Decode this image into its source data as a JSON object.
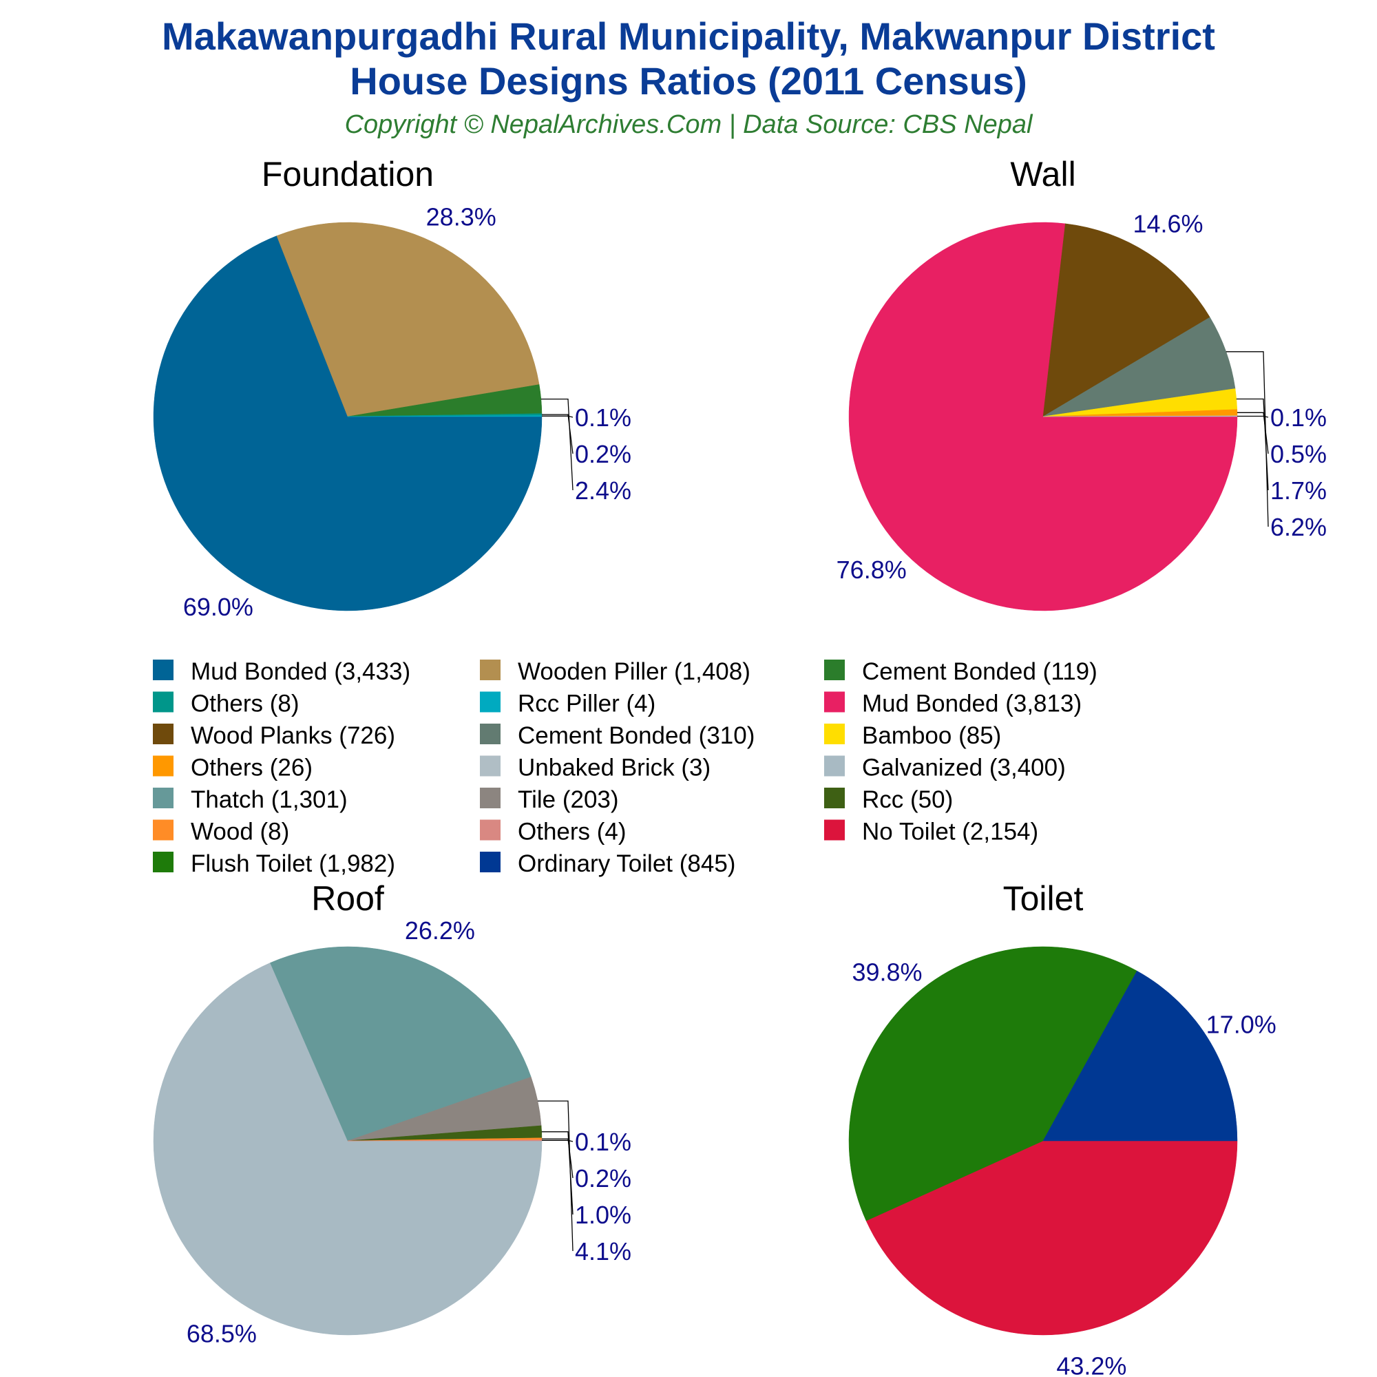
{
  "header": {
    "title_line1": "Makawanpurgadhi Rural Municipality, Makwanpur District",
    "title_line2": "House Designs Ratios (2011 Census)",
    "subtitle": "Copyright © NepalArchives.Com | Data Source: CBS Nepal"
  },
  "chart_data": [
    {
      "type": "pie",
      "title": "Foundation",
      "slices": [
        {
          "label": "Mud Bonded",
          "value": 3433,
          "percent_label": "69.0%",
          "color": "#006496"
        },
        {
          "label": "Wooden Piller",
          "value": 1408,
          "percent_label": "28.3%",
          "color": "#b38f50"
        },
        {
          "label": "Cement Bonded",
          "value": 119,
          "percent_label": "2.4%",
          "color": "#2b7d2b"
        },
        {
          "label": "Others",
          "value": 8,
          "percent_label": "0.2%",
          "color": "#00968a"
        },
        {
          "label": "Rcc Piller",
          "value": 4,
          "percent_label": "0.1%",
          "color": "#00aac0"
        }
      ]
    },
    {
      "type": "pie",
      "title": "Wall",
      "slices": [
        {
          "label": "Mud Bonded",
          "value": 3813,
          "percent_label": "76.8%",
          "color": "#e82063"
        },
        {
          "label": "Wood Planks",
          "value": 726,
          "percent_label": "14.6%",
          "color": "#6f4a0c"
        },
        {
          "label": "Cement Bonded",
          "value": 310,
          "percent_label": "6.2%",
          "color": "#627b71"
        },
        {
          "label": "Bamboo",
          "value": 85,
          "percent_label": "1.7%",
          "color": "#ffde00"
        },
        {
          "label": "Others",
          "value": 26,
          "percent_label": "0.5%",
          "color": "#ff9800"
        },
        {
          "label": "Unbaked Brick",
          "value": 3,
          "percent_label": "0.1%",
          "color": "#b0bec5"
        }
      ]
    },
    {
      "type": "pie",
      "title": "Roof",
      "slices": [
        {
          "label": "Galvanized",
          "value": 3400,
          "percent_label": "68.5%",
          "color": "#a8bac3"
        },
        {
          "label": "Thatch",
          "value": 1301,
          "percent_label": "26.2%",
          "color": "#669999"
        },
        {
          "label": "Tile",
          "value": 203,
          "percent_label": "4.1%",
          "color": "#8c8580"
        },
        {
          "label": "Rcc",
          "value": 50,
          "percent_label": "1.0%",
          "color": "#3e6014"
        },
        {
          "label": "Wood",
          "value": 8,
          "percent_label": "0.2%",
          "color": "#ff8c26"
        },
        {
          "label": "Others",
          "value": 4,
          "percent_label": "0.1%",
          "color": "#d98882"
        }
      ]
    },
    {
      "type": "pie",
      "title": "Toilet",
      "slices": [
        {
          "label": "No Toilet",
          "value": 2154,
          "percent_label": "43.2%",
          "color": "#dc143c"
        },
        {
          "label": "Flush Toilet",
          "value": 1982,
          "percent_label": "39.8%",
          "color": "#1e7b0a"
        },
        {
          "label": "Ordinary Toilet",
          "value": 845,
          "percent_label": "17.0%",
          "color": "#003893"
        }
      ]
    }
  ],
  "legend": [
    {
      "text": "Mud Bonded (3,433)",
      "color": "#006496"
    },
    {
      "text": "Wooden Piller (1,408)",
      "color": "#b38f50"
    },
    {
      "text": "Cement Bonded (119)",
      "color": "#2b7d2b"
    },
    {
      "text": "Others (8)",
      "color": "#00968a"
    },
    {
      "text": "Rcc Piller (4)",
      "color": "#00aac0"
    },
    {
      "text": "Mud Bonded (3,813)",
      "color": "#e82063"
    },
    {
      "text": "Wood Planks (726)",
      "color": "#6f4a0c"
    },
    {
      "text": "Cement Bonded (310)",
      "color": "#627b71"
    },
    {
      "text": "Bamboo (85)",
      "color": "#ffde00"
    },
    {
      "text": "Others (26)",
      "color": "#ff9800"
    },
    {
      "text": "Unbaked Brick (3)",
      "color": "#b0bec5"
    },
    {
      "text": "Galvanized (3,400)",
      "color": "#a8bac3"
    },
    {
      "text": "Thatch (1,301)",
      "color": "#669999"
    },
    {
      "text": "Tile (203)",
      "color": "#8c8580"
    },
    {
      "text": "Rcc (50)",
      "color": "#3e6014"
    },
    {
      "text": "Wood (8)",
      "color": "#ff8c26"
    },
    {
      "text": "Others (4)",
      "color": "#d98882"
    },
    {
      "text": "No Toilet (2,154)",
      "color": "#dc143c"
    },
    {
      "text": "Flush Toilet (1,982)",
      "color": "#1e7b0a"
    },
    {
      "text": "Ordinary Toilet (845)",
      "color": "#003893"
    }
  ]
}
